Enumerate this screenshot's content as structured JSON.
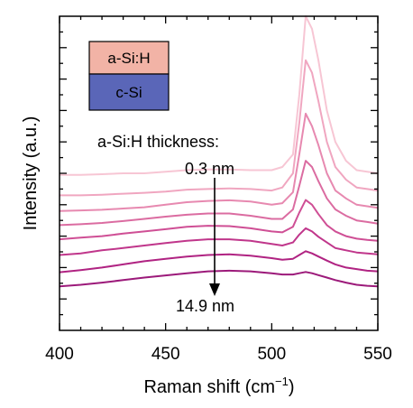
{
  "chart_data": {
    "type": "line",
    "xlabel": "Raman shift (cm",
    "xlabel_sup": "−1",
    "xlabel_end": ")",
    "ylabel": "Intensity (a.u.)",
    "xlim": [
      400,
      550
    ],
    "ylim": [
      0,
      10
    ],
    "x_ticks": [
      400,
      450,
      500,
      550
    ],
    "y_ticks_no_labels": true,
    "inset": {
      "top_label": "a-Si:H",
      "bottom_label": "c-Si",
      "top_color": "#f2b3a6",
      "bottom_color": "#5a66b8"
    },
    "annotations": {
      "heading": "a-Si:H thickness:",
      "start": "0.3 nm",
      "end": "14.9 nm"
    },
    "x": [
      400,
      410,
      420,
      430,
      440,
      450,
      460,
      470,
      480,
      490,
      500,
      505,
      510,
      513,
      516,
      519,
      522,
      526,
      530,
      535,
      540,
      545,
      550
    ],
    "series": [
      {
        "color": "#f7c6d4",
        "values": [
          4.95,
          4.95,
          4.97,
          5.0,
          5.0,
          5.05,
          5.1,
          5.12,
          5.12,
          5.1,
          5.1,
          5.2,
          5.6,
          7.5,
          10.0,
          9.6,
          8.6,
          7.0,
          6.0,
          5.4,
          5.1,
          5.05,
          5.0
        ]
      },
      {
        "color": "#f0a6c0",
        "values": [
          4.3,
          4.3,
          4.32,
          4.35,
          4.38,
          4.42,
          4.48,
          4.5,
          4.52,
          4.5,
          4.45,
          4.55,
          5.0,
          6.6,
          8.6,
          8.2,
          7.3,
          6.0,
          5.2,
          4.8,
          4.55,
          4.5,
          4.45
        ]
      },
      {
        "color": "#e789b0",
        "values": [
          3.8,
          3.82,
          3.84,
          3.88,
          3.92,
          4.0,
          4.08,
          4.12,
          4.14,
          4.1,
          4.0,
          4.05,
          4.4,
          5.6,
          6.9,
          6.5,
          5.9,
          5.0,
          4.45,
          4.2,
          4.0,
          3.95,
          3.9
        ]
      },
      {
        "color": "#db6ca1",
        "values": [
          3.35,
          3.38,
          3.42,
          3.48,
          3.55,
          3.62,
          3.68,
          3.72,
          3.72,
          3.65,
          3.55,
          3.55,
          3.85,
          4.6,
          5.4,
          5.2,
          4.75,
          4.2,
          3.85,
          3.65,
          3.5,
          3.45,
          3.4
        ]
      },
      {
        "color": "#cf4f95",
        "values": [
          2.9,
          2.95,
          3.0,
          3.08,
          3.15,
          3.22,
          3.3,
          3.33,
          3.32,
          3.25,
          3.15,
          3.12,
          3.3,
          3.75,
          4.15,
          4.0,
          3.7,
          3.35,
          3.15,
          3.0,
          2.92,
          2.88,
          2.85
        ]
      },
      {
        "color": "#c0368b",
        "values": [
          2.4,
          2.45,
          2.55,
          2.62,
          2.7,
          2.78,
          2.85,
          2.9,
          2.9,
          2.85,
          2.75,
          2.7,
          2.8,
          3.05,
          3.25,
          3.15,
          2.98,
          2.8,
          2.62,
          2.55,
          2.48,
          2.45,
          2.42
        ]
      },
      {
        "color": "#b02382",
        "values": [
          1.85,
          1.92,
          2.0,
          2.1,
          2.2,
          2.28,
          2.35,
          2.4,
          2.42,
          2.38,
          2.3,
          2.25,
          2.28,
          2.4,
          2.52,
          2.45,
          2.35,
          2.22,
          2.1,
          2.0,
          1.95,
          1.9,
          1.88
        ]
      },
      {
        "color": "#9c1a7a",
        "values": [
          1.4,
          1.45,
          1.52,
          1.6,
          1.68,
          1.75,
          1.82,
          1.88,
          1.9,
          1.88,
          1.82,
          1.78,
          1.78,
          1.82,
          1.86,
          1.82,
          1.76,
          1.68,
          1.6,
          1.52,
          1.45,
          1.42,
          1.4
        ]
      }
    ]
  }
}
